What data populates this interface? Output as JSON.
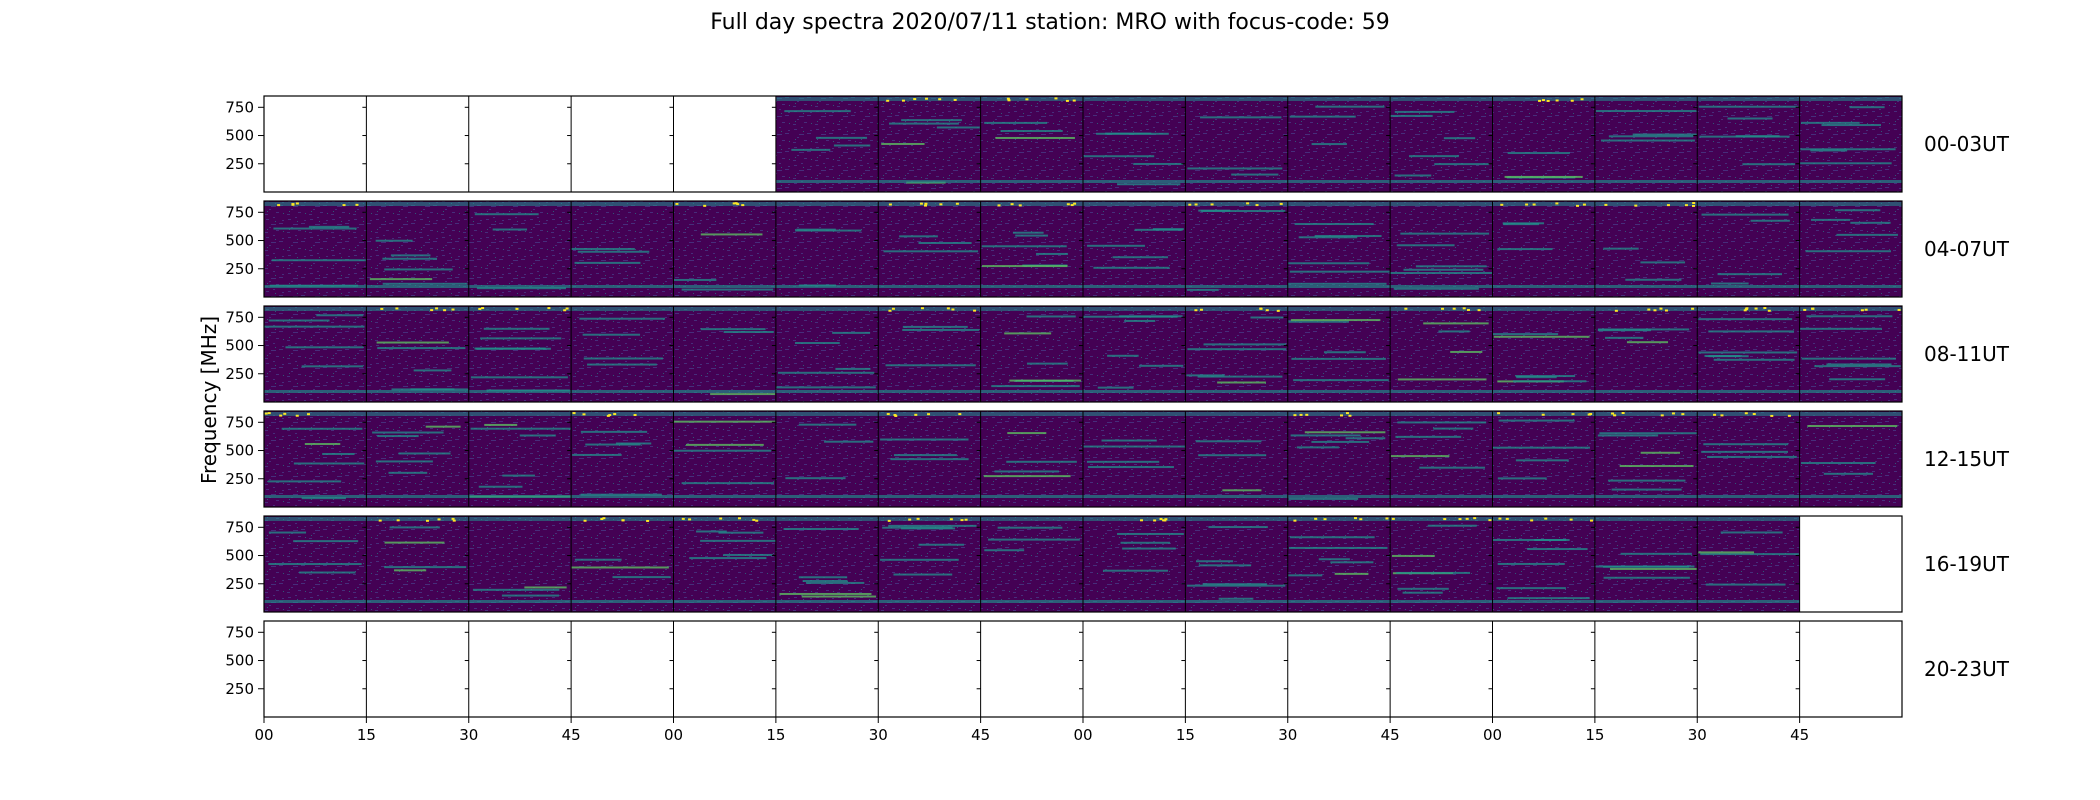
{
  "chart_data": {
    "type": "heatmap",
    "title": "Full day spectra 2020/07/11 station: MRO with focus-code: 59",
    "ylabel": "Frequency [MHz]",
    "ylim": [
      0,
      850
    ],
    "y_ticks": [
      "250",
      "500",
      "750"
    ],
    "x_tick_labels": [
      "00",
      "15",
      "30",
      "45",
      "00",
      "15",
      "30",
      "45",
      "00",
      "15",
      "30",
      "45",
      "00",
      "15",
      "30",
      "45"
    ],
    "colormap": "viridis",
    "colors": {
      "background": "#440154",
      "low": "#472d7b",
      "mid": "#21918c",
      "high": "#5ec962",
      "peak": "#fde725"
    },
    "rows": [
      {
        "label": "00-03UT",
        "panels": [
          false,
          false,
          false,
          false,
          false,
          true,
          true,
          true,
          true,
          true,
          true,
          true,
          true,
          true,
          true,
          true
        ]
      },
      {
        "label": "04-07UT",
        "panels": [
          true,
          true,
          true,
          true,
          true,
          true,
          true,
          true,
          true,
          true,
          true,
          true,
          true,
          true,
          true,
          true
        ]
      },
      {
        "label": "08-11UT",
        "panels": [
          true,
          true,
          true,
          true,
          true,
          true,
          true,
          true,
          true,
          true,
          true,
          true,
          true,
          true,
          true,
          true
        ]
      },
      {
        "label": "12-15UT",
        "panels": [
          true,
          true,
          true,
          true,
          true,
          true,
          true,
          true,
          true,
          true,
          true,
          true,
          true,
          true,
          true,
          true
        ]
      },
      {
        "label": "16-19UT",
        "panels": [
          true,
          true,
          true,
          true,
          true,
          true,
          true,
          true,
          true,
          true,
          true,
          true,
          true,
          true,
          true,
          false
        ]
      },
      {
        "label": "20-23UT",
        "panels": [
          false,
          false,
          false,
          false,
          false,
          false,
          false,
          false,
          false,
          false,
          false,
          false,
          false,
          false,
          false,
          false
        ]
      }
    ]
  }
}
